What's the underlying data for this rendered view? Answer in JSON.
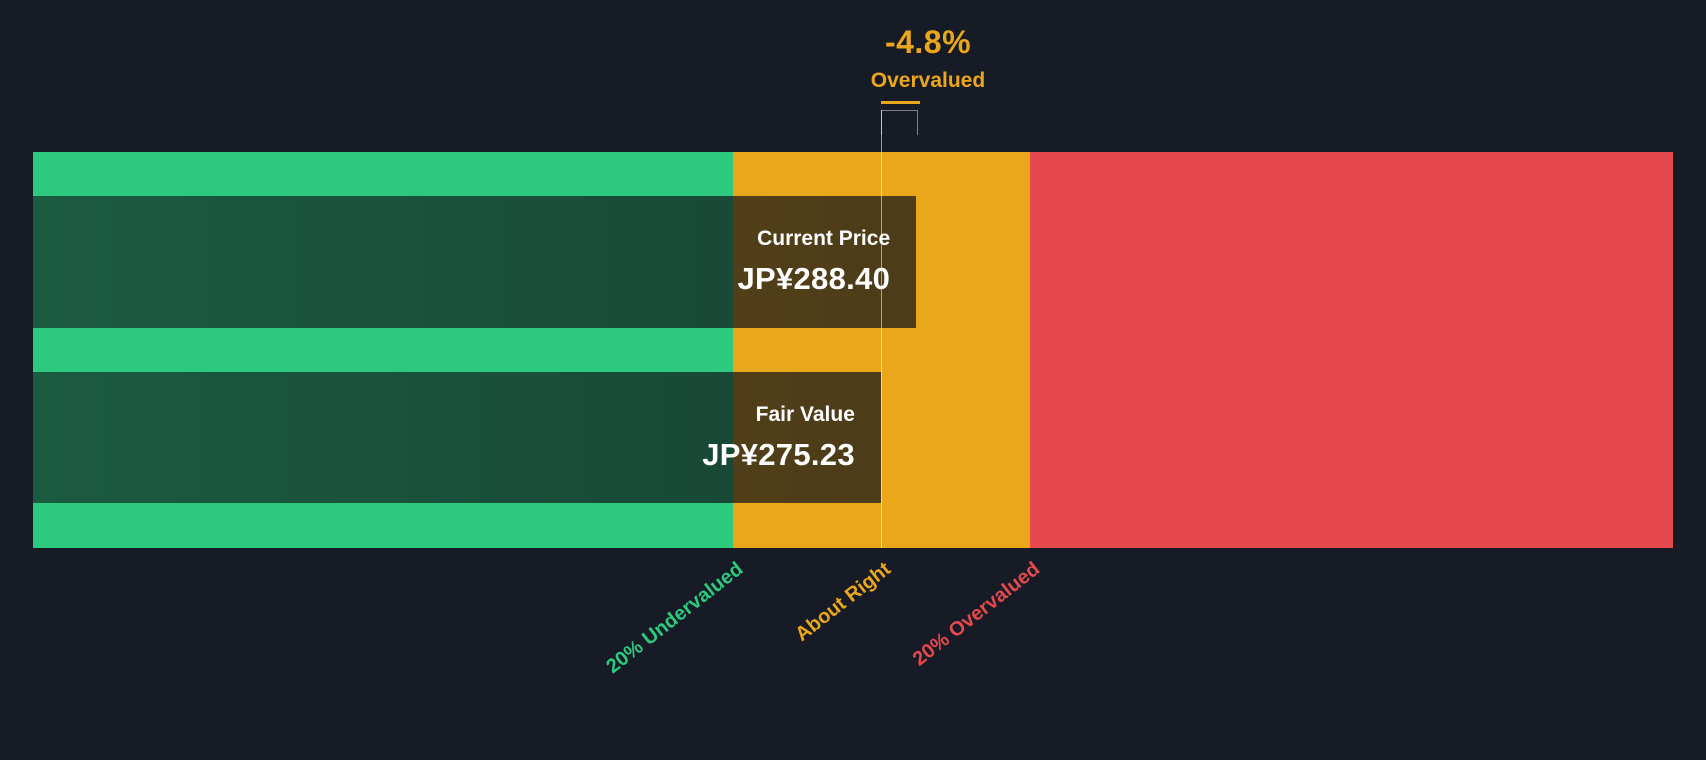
{
  "page": {
    "background": "#161B25"
  },
  "chart_data": {
    "type": "bar",
    "subtype": "fair-value-gauge",
    "title": "",
    "annotation": {
      "delta": "-4.8%",
      "status": "Overvalued",
      "color": "#EBA71B"
    },
    "bars": [
      {
        "name": "Current Price",
        "value_text": "JP¥288.40",
        "value": 288.4,
        "currency": "JP¥",
        "width_pct": 53.85
      },
      {
        "name": "Fair Value",
        "value_text": "JP¥275.23",
        "value": 275.23,
        "currency": "JP¥",
        "width_pct": 51.7
      }
    ],
    "zones": [
      {
        "label": "20% Undervalued",
        "color": "#2DC97E",
        "width_pct": 42.7
      },
      {
        "label": "About Right",
        "color": "#EBA71B",
        "width_pct": 18.1
      },
      {
        "label": "20% Overvalued",
        "color": "#E5494D",
        "width_pct": 39.2
      }
    ],
    "axis_anchor_pct": [
      42.7,
      51.75,
      60.8
    ],
    "fair_value_line_pct": 51.7,
    "grid": false,
    "legend_position": "bottom-rotated"
  }
}
